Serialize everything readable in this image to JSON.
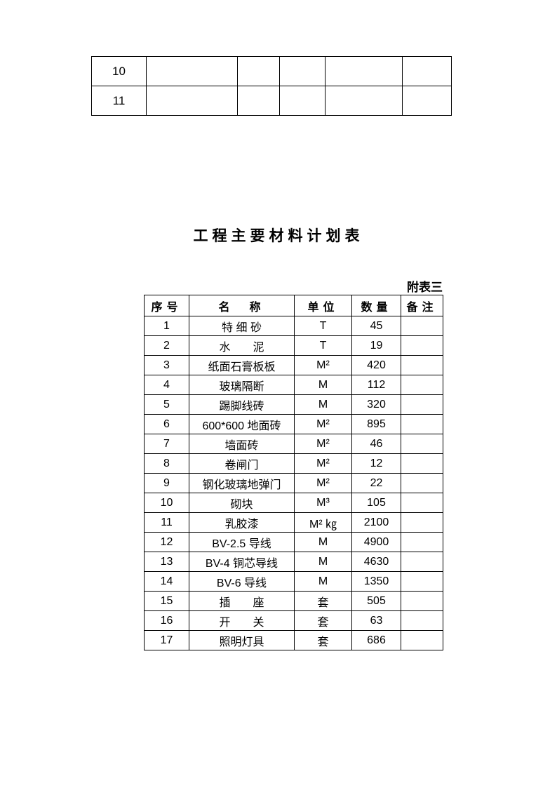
{
  "topTable": {
    "rows": [
      {
        "num": "10"
      },
      {
        "num": "11"
      }
    ]
  },
  "title": "工程主要材料计划表",
  "subtitle": "附表三",
  "mainTable": {
    "headers": {
      "col1": "序号",
      "col2": "名　称",
      "col3": "单位",
      "col4": "数量",
      "col5": "备注"
    },
    "rows": [
      {
        "num": "1",
        "name": "特 细 砂",
        "unit": "T",
        "qty": "45",
        "remark": ""
      },
      {
        "num": "2",
        "name": "水　　泥",
        "unit": "T",
        "qty": "19",
        "remark": ""
      },
      {
        "num": "3",
        "name": "纸面石膏板板",
        "unit": "M²",
        "qty": "420",
        "remark": ""
      },
      {
        "num": "4",
        "name": "玻璃隔断",
        "unit": "M",
        "qty": "112",
        "remark": ""
      },
      {
        "num": "5",
        "name": "踢脚线砖",
        "unit": "M",
        "qty": "320",
        "remark": ""
      },
      {
        "num": "6",
        "name": "600*600 地面砖",
        "unit": "M²",
        "qty": "895",
        "remark": ""
      },
      {
        "num": "7",
        "name": "墙面砖",
        "unit": "M²",
        "qty": "46",
        "remark": ""
      },
      {
        "num": "8",
        "name": "卷闸门",
        "unit": "M²",
        "qty": "12",
        "remark": ""
      },
      {
        "num": "9",
        "name": "钢化玻璃地弹门",
        "unit": "M²",
        "qty": "22",
        "remark": ""
      },
      {
        "num": "10",
        "name": "砌块",
        "unit": "M³",
        "qty": "105",
        "remark": ""
      },
      {
        "num": "11",
        "name": "乳胶漆",
        "unit": "M² ㎏",
        "qty": "2100",
        "remark": ""
      },
      {
        "num": "12",
        "name": "BV-2.5 导线",
        "unit": "M",
        "qty": "4900",
        "remark": ""
      },
      {
        "num": "13",
        "name": "BV-4 铜芯导线",
        "unit": "M",
        "qty": "4630",
        "remark": ""
      },
      {
        "num": "14",
        "name": "BV-6 导线",
        "unit": "M",
        "qty": "1350",
        "remark": ""
      },
      {
        "num": "15",
        "name": "插　　座",
        "unit": "套",
        "qty": "505",
        "remark": ""
      },
      {
        "num": "16",
        "name": "开　　关",
        "unit": "套",
        "qty": "63",
        "remark": ""
      },
      {
        "num": "17",
        "name": "照明灯具",
        "unit": "套",
        "qty": "686",
        "remark": ""
      }
    ]
  }
}
